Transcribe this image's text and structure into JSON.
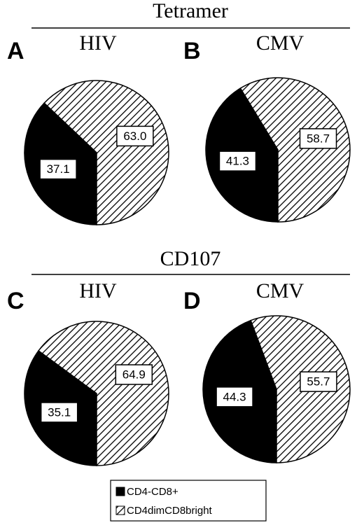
{
  "sections": [
    "Tetramer",
    "CD107"
  ],
  "legend": [
    {
      "name": "CD4-CD8+",
      "color": "#000000",
      "pattern": "solid"
    },
    {
      "name": "CD4dimCD8bright",
      "color": "#000000",
      "pattern": "hatch"
    }
  ],
  "chart_data": [
    {
      "type": "pie",
      "panel": "A",
      "title": "HIV",
      "values": [
        37.1,
        63.0
      ],
      "value_labels": [
        "37.1",
        "63.0"
      ]
    },
    {
      "type": "pie",
      "panel": "B",
      "title": "CMV",
      "values": [
        41.3,
        58.7
      ],
      "value_labels": [
        "41.3",
        "58.7"
      ]
    },
    {
      "type": "pie",
      "panel": "C",
      "title": "HIV",
      "values": [
        35.1,
        64.9
      ],
      "value_labels": [
        "35.1",
        "64.9"
      ]
    },
    {
      "type": "pie",
      "panel": "D",
      "title": "CMV",
      "values": [
        44.3,
        55.7
      ],
      "value_labels": [
        "44.3",
        "55.7"
      ]
    }
  ]
}
